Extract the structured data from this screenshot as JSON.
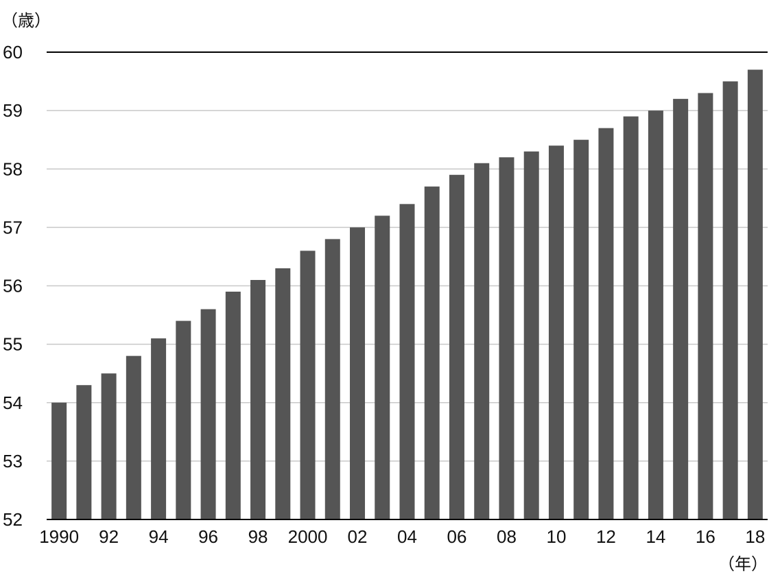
{
  "chart_data": {
    "type": "bar",
    "y_unit": "（歳）",
    "x_unit": "（年）",
    "ylim": [
      52,
      60
    ],
    "yticks": [
      52,
      53,
      54,
      55,
      56,
      57,
      58,
      59,
      60
    ],
    "grid": true,
    "categories": [
      "1990",
      "1991",
      "1992",
      "1993",
      "1994",
      "1995",
      "1996",
      "1997",
      "1998",
      "1999",
      "2000",
      "2001",
      "2002",
      "2003",
      "2004",
      "2005",
      "2006",
      "2007",
      "2008",
      "2009",
      "2010",
      "2011",
      "2012",
      "2013",
      "2014",
      "2015",
      "2016",
      "2017",
      "2018"
    ],
    "x_tick_labels": [
      "1990",
      "",
      "92",
      "",
      "94",
      "",
      "96",
      "",
      "98",
      "",
      "2000",
      "",
      "02",
      "",
      "04",
      "",
      "06",
      "",
      "08",
      "",
      "10",
      "",
      "12",
      "",
      "14",
      "",
      "16",
      "",
      "18"
    ],
    "values": [
      54.0,
      54.3,
      54.5,
      54.8,
      55.1,
      55.4,
      55.6,
      55.9,
      56.1,
      56.3,
      56.6,
      56.8,
      57.0,
      57.2,
      57.4,
      57.7,
      57.9,
      58.1,
      58.2,
      58.3,
      58.4,
      58.5,
      58.7,
      58.9,
      59.0,
      59.2,
      59.3,
      59.5,
      59.7
    ],
    "colors": {
      "bar": "#555555",
      "grid": "#c8c8c8",
      "axis": "#000000"
    }
  }
}
